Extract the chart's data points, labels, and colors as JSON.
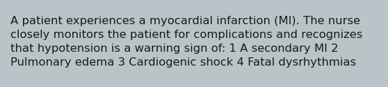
{
  "background_color": "#b8c4c8",
  "text": "A patient experiences a myocardial infarction (MI). The nurse\nclosely monitors the patient for complications and recognizes\nthat hypotension is a warning sign of: 1 A secondary MI 2\nPulmonary edema 3 Cardiogenic shock 4 Fatal dysrhythmias",
  "text_color": "#1a1a1a",
  "font_size": 11.8,
  "font_family": "DejaVu Sans",
  "fig_width": 5.58,
  "fig_height": 1.26,
  "dpi": 100
}
